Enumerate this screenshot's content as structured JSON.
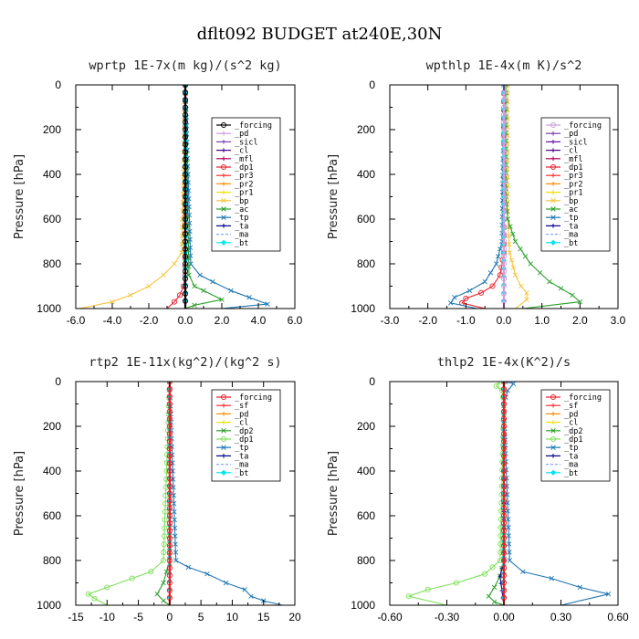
{
  "figure_title": "dflt092  BUDGET at240E,30N",
  "chart_data": [
    {
      "id": "wprtp",
      "type": "line",
      "title": "wprtp   1E-7x(m kg)/(s^2 kg)",
      "ylabel": "Pressure [hPa]",
      "xlim": [
        -6,
        6
      ],
      "ylim": [
        1000,
        0
      ],
      "xticks": [
        -6,
        -4,
        -2,
        0,
        2,
        4,
        6
      ],
      "xtick_labels": [
        "-6.0",
        "-4.0",
        "-2.0",
        "0.0",
        "2.0",
        "4.0",
        "6.0"
      ],
      "yticks": [
        0,
        200,
        400,
        600,
        800,
        1000
      ],
      "ytick_labels": [
        "0",
        "200",
        "400",
        "600",
        "800",
        "1000"
      ],
      "series": [
        {
          "name": "_forcing",
          "color": "#000000",
          "marker": "o",
          "x": [
            0,
            0,
            0,
            0,
            0,
            0,
            0,
            0,
            0,
            0,
            0
          ],
          "y": [
            0,
            100,
            200,
            300,
            400,
            500,
            600,
            700,
            800,
            900,
            1000
          ]
        },
        {
          "name": "_pd",
          "color": "#c9a0dc",
          "marker": "+",
          "x": [
            0,
            0,
            0
          ],
          "y": [
            0,
            500,
            1000
          ]
        },
        {
          "name": "_sicl",
          "color": "#7b3fb0",
          "marker": "+",
          "x": [
            0,
            0,
            0
          ],
          "y": [
            0,
            500,
            1000
          ]
        },
        {
          "name": "_cl",
          "color": "#4b0082",
          "marker": "+",
          "x": [
            0,
            0,
            0
          ],
          "y": [
            0,
            500,
            1000
          ]
        },
        {
          "name": "_mfl",
          "color": "#b0005a",
          "marker": "+",
          "x": [
            0,
            0,
            0
          ],
          "y": [
            0,
            500,
            1000
          ]
        },
        {
          "name": "_dp1",
          "color": "#e8202a",
          "marker": "o",
          "x": [
            0,
            0,
            0,
            -0.1,
            -0.3,
            -0.6,
            -1.0
          ],
          "y": [
            0,
            700,
            850,
            900,
            940,
            970,
            1000
          ]
        },
        {
          "name": "_pr3",
          "color": "#ff3030",
          "marker": "+",
          "x": [
            0,
            0,
            0
          ],
          "y": [
            0,
            500,
            1000
          ]
        },
        {
          "name": "_pr2",
          "color": "#ff8c00",
          "marker": "+",
          "x": [
            0,
            0,
            0
          ],
          "y": [
            0,
            500,
            1000
          ]
        },
        {
          "name": "_pr1",
          "color": "#f0e000",
          "marker": "+",
          "x": [
            0,
            0,
            0
          ],
          "y": [
            0,
            500,
            1000
          ]
        },
        {
          "name": "_bp",
          "color": "#f5c542",
          "marker": "x",
          "x": [
            0,
            -0.2,
            -0.6,
            -1.2,
            -2.0,
            -3.0,
            -4.0,
            -5.8
          ],
          "y": [
            0,
            750,
            800,
            850,
            900,
            940,
            970,
            1000
          ]
        },
        {
          "name": "_ac",
          "color": "#2ca02c",
          "marker": "x",
          "x": [
            0,
            0.2,
            0.5,
            1.0,
            2.0,
            0.5,
            0
          ],
          "y": [
            0,
            850,
            900,
            920,
            960,
            985,
            1000
          ]
        },
        {
          "name": "_tp",
          "color": "#1f77b4",
          "marker": "x",
          "x": [
            0,
            0.3,
            0.8,
            1.5,
            2.5,
            3.5,
            4.5,
            2.0
          ],
          "y": [
            0,
            800,
            850,
            880,
            920,
            950,
            980,
            1000
          ]
        },
        {
          "name": "_ta",
          "color": "#00008b",
          "marker": "+",
          "x": [
            0,
            0,
            0
          ],
          "y": [
            0,
            500,
            1000
          ]
        },
        {
          "name": "_ma",
          "color": "#87a8ff",
          "marker": "-",
          "x": [
            0,
            0,
            0
          ],
          "y": [
            0,
            500,
            1000
          ]
        },
        {
          "name": "_bt",
          "color": "#00e5ee",
          "marker": "D",
          "x": [
            0,
            0,
            0
          ],
          "y": [
            0,
            500,
            1000
          ]
        }
      ]
    },
    {
      "id": "wpthlp",
      "type": "line",
      "title": "wpthlp   1E-4x(m K)/s^2",
      "ylabel": "Pressure [hPa]",
      "xlim": [
        -3,
        3
      ],
      "ylim": [
        1000,
        0
      ],
      "xticks": [
        -3,
        -2,
        -1,
        0,
        1,
        2,
        3
      ],
      "xtick_labels": [
        "-3.0",
        "-2.0",
        "-1.0",
        "0.0",
        "1.0",
        "2.0",
        "3.0"
      ],
      "yticks": [
        0,
        200,
        400,
        600,
        800,
        1000
      ],
      "ytick_labels": [
        "0",
        "200",
        "400",
        "600",
        "800",
        "1000"
      ],
      "series": [
        {
          "name": "_forcing",
          "color": "#c9a0dc",
          "marker": "o",
          "x": [
            0,
            0,
            0,
            0,
            0,
            0,
            0,
            0,
            0,
            0,
            0
          ],
          "y": [
            0,
            100,
            200,
            300,
            400,
            500,
            600,
            700,
            800,
            900,
            1000
          ]
        },
        {
          "name": "_pd",
          "color": "#7b3fb0",
          "marker": "+",
          "x": [
            0,
            0,
            0
          ],
          "y": [
            0,
            500,
            1000
          ]
        },
        {
          "name": "_sicl",
          "color": "#6a0dad",
          "marker": "+",
          "x": [
            0,
            0,
            0
          ],
          "y": [
            0,
            500,
            1000
          ]
        },
        {
          "name": "_cl",
          "color": "#4b0082",
          "marker": "+",
          "x": [
            0,
            0,
            0
          ],
          "y": [
            0,
            500,
            1000
          ]
        },
        {
          "name": "_mfl",
          "color": "#b0005a",
          "marker": "+",
          "x": [
            0,
            0,
            0
          ],
          "y": [
            0,
            500,
            1000
          ]
        },
        {
          "name": "_dp1",
          "color": "#e8202a",
          "marker": "o",
          "x": [
            0,
            0,
            -0.1,
            -0.3,
            -0.6,
            -1.0,
            -1.1,
            -0.5
          ],
          "y": [
            0,
            750,
            850,
            900,
            930,
            955,
            975,
            1000
          ]
        },
        {
          "name": "_pr3",
          "color": "#ff3030",
          "marker": "+",
          "x": [
            0,
            0,
            0
          ],
          "y": [
            0,
            500,
            1000
          ]
        },
        {
          "name": "_pr2",
          "color": "#ff8c00",
          "marker": "+",
          "x": [
            0,
            0,
            0
          ],
          "y": [
            0,
            500,
            1000
          ]
        },
        {
          "name": "_pr1",
          "color": "#f0e000",
          "marker": "+",
          "x": [
            0,
            0,
            0
          ],
          "y": [
            0,
            500,
            1000
          ]
        },
        {
          "name": "_bp",
          "color": "#f5c542",
          "marker": "x",
          "x": [
            0.1,
            0.1,
            0.15,
            0.3,
            0.45,
            0.6,
            0.6,
            0.3
          ],
          "y": [
            0,
            600,
            750,
            850,
            900,
            930,
            960,
            1000
          ]
        },
        {
          "name": "_ac",
          "color": "#2ca02c",
          "marker": "x",
          "x": [
            0.05,
            0.05,
            0.1,
            0.3,
            0.7,
            1.2,
            1.8,
            2.0,
            0.5
          ],
          "y": [
            0,
            500,
            600,
            700,
            800,
            880,
            940,
            970,
            1000
          ]
        },
        {
          "name": "_tp",
          "color": "#1f77b4",
          "marker": "x",
          "x": [
            0,
            -0.05,
            -0.2,
            -0.5,
            -0.9,
            -1.3,
            -1.4,
            -0.7
          ],
          "y": [
            0,
            700,
            800,
            880,
            920,
            950,
            975,
            1000
          ]
        },
        {
          "name": "_ta",
          "color": "#00008b",
          "marker": "+",
          "x": [
            0,
            0,
            0
          ],
          "y": [
            0,
            500,
            1000
          ]
        },
        {
          "name": "_ma",
          "color": "#87a8ff",
          "marker": "-",
          "x": [
            0,
            0,
            0
          ],
          "y": [
            0,
            500,
            1000
          ]
        },
        {
          "name": "_bt",
          "color": "#00e5ee",
          "marker": "D",
          "x": [
            0,
            0,
            0
          ],
          "y": [
            0,
            500,
            1000
          ]
        }
      ]
    },
    {
      "id": "rtp2",
      "type": "line",
      "title": "rtp2   1E-11x(kg^2)/(kg^2 s)",
      "ylabel": "Pressure [hPa]",
      "xlim": [
        -15,
        20
      ],
      "ylim": [
        1000,
        0
      ],
      "xticks": [
        -15,
        -10,
        -5,
        0,
        5,
        10,
        15,
        20
      ],
      "xtick_labels": [
        "-15",
        "-10",
        "-5",
        "0",
        "5",
        "10",
        "15",
        "20"
      ],
      "yticks": [
        0,
        200,
        400,
        600,
        800,
        1000
      ],
      "ytick_labels": [
        "0",
        "200",
        "400",
        "600",
        "800",
        "1000"
      ],
      "series": [
        {
          "name": "_forcing",
          "color": "#e8202a",
          "marker": "o",
          "x": [
            0,
            0,
            0,
            0,
            0,
            0,
            0,
            0,
            0,
            0,
            0
          ],
          "y": [
            0,
            100,
            200,
            300,
            400,
            500,
            600,
            700,
            800,
            900,
            1000
          ]
        },
        {
          "name": "_sf",
          "color": "#ff3030",
          "marker": "+",
          "x": [
            0,
            0,
            0
          ],
          "y": [
            0,
            500,
            1000
          ]
        },
        {
          "name": "_pd",
          "color": "#ff8c00",
          "marker": "+",
          "x": [
            0,
            0,
            0
          ],
          "y": [
            0,
            500,
            1000
          ]
        },
        {
          "name": "_cl",
          "color": "#f0e000",
          "marker": "+",
          "x": [
            0,
            0,
            0
          ],
          "y": [
            0,
            500,
            1000
          ]
        },
        {
          "name": "_dp2",
          "color": "#2ca02c",
          "marker": "x",
          "x": [
            0,
            0,
            -0.5,
            -1.0,
            -2.0,
            -1.0,
            0
          ],
          "y": [
            0,
            800,
            850,
            900,
            950,
            980,
            1000
          ]
        },
        {
          "name": "_dp1",
          "color": "#7fe05a",
          "marker": "o",
          "x": [
            0,
            -1.0,
            -3.0,
            -6.0,
            -10.0,
            -13.0,
            -12.0,
            -10.0
          ],
          "y": [
            0,
            800,
            850,
            880,
            920,
            950,
            970,
            1000
          ]
        },
        {
          "name": "_tp",
          "color": "#1f77b4",
          "marker": "x",
          "x": [
            0,
            1.0,
            3.0,
            6.0,
            9.0,
            12.0,
            13.0,
            15.0,
            18.0
          ],
          "y": [
            0,
            800,
            830,
            860,
            900,
            930,
            960,
            980,
            1000
          ]
        },
        {
          "name": "_ta",
          "color": "#00008b",
          "marker": "+",
          "x": [
            0,
            0,
            0
          ],
          "y": [
            0,
            500,
            1000
          ]
        },
        {
          "name": "_ma",
          "color": "#87a8ff",
          "marker": "-",
          "x": [
            0,
            0,
            0
          ],
          "y": [
            0,
            500,
            1000
          ]
        },
        {
          "name": "_bt",
          "color": "#00e5ee",
          "marker": "D",
          "x": [
            0,
            0,
            0
          ],
          "y": [
            0,
            500,
            1000
          ]
        }
      ]
    },
    {
      "id": "thlp2",
      "type": "line",
      "title": "thlp2   1E-4x(K^2)/s",
      "ylabel": "Pressure [hPa]",
      "xlim": [
        -0.6,
        0.6
      ],
      "ylim": [
        1000,
        0
      ],
      "xticks": [
        -0.6,
        -0.3,
        0,
        0.3,
        0.6
      ],
      "xtick_labels": [
        "-0.60",
        "-0.30",
        "0.00",
        "0.30",
        "0.60"
      ],
      "yticks": [
        0,
        200,
        400,
        600,
        800,
        1000
      ],
      "ytick_labels": [
        "0",
        "200",
        "400",
        "600",
        "800",
        "1000"
      ],
      "series": [
        {
          "name": "_forcing",
          "color": "#e8202a",
          "marker": "o",
          "x": [
            0,
            0,
            0,
            0,
            0,
            0,
            0,
            0,
            0,
            0,
            0
          ],
          "y": [
            0,
            100,
            200,
            300,
            400,
            500,
            600,
            700,
            800,
            900,
            1000
          ]
        },
        {
          "name": "_sf",
          "color": "#ff3030",
          "marker": "+",
          "x": [
            0,
            0,
            0
          ],
          "y": [
            0,
            500,
            1000
          ]
        },
        {
          "name": "_pd",
          "color": "#ff8c00",
          "marker": "+",
          "x": [
            0,
            0,
            0
          ],
          "y": [
            0,
            500,
            1000
          ]
        },
        {
          "name": "_cl",
          "color": "#f0e000",
          "marker": "+",
          "x": [
            0,
            0,
            0
          ],
          "y": [
            0,
            500,
            1000
          ]
        },
        {
          "name": "_dp2",
          "color": "#2ca02c",
          "marker": "x",
          "x": [
            0,
            0,
            -0.02,
            -0.05,
            -0.08,
            -0.05,
            0
          ],
          "y": [
            0,
            800,
            870,
            920,
            960,
            985,
            1000
          ]
        },
        {
          "name": "_dp1",
          "color": "#7fe05a",
          "marker": "o",
          "x": [
            -0.02,
            -0.04,
            -0.01,
            0,
            -0.02,
            -0.1,
            -0.25,
            -0.4,
            -0.5,
            -0.3
          ],
          "y": [
            0,
            20,
            40,
            100,
            800,
            860,
            900,
            930,
            960,
            1000
          ]
        },
        {
          "name": "_tp",
          "color": "#1f77b4",
          "marker": "x",
          "x": [
            0.01,
            0.05,
            0.02,
            0,
            0.03,
            0.1,
            0.25,
            0.4,
            0.55,
            0.3
          ],
          "y": [
            0,
            10,
            40,
            100,
            800,
            850,
            880,
            920,
            950,
            1000
          ]
        },
        {
          "name": "_ta",
          "color": "#00008b",
          "marker": "+",
          "x": [
            0,
            0,
            -0.02,
            0
          ],
          "y": [
            0,
            800,
            870,
            1000
          ]
        },
        {
          "name": "_ma",
          "color": "#87a8ff",
          "marker": "-",
          "x": [
            0,
            0,
            0
          ],
          "y": [
            0,
            500,
            1000
          ]
        },
        {
          "name": "_bt",
          "color": "#00e5ee",
          "marker": "D",
          "x": [
            0,
            0,
            0
          ],
          "y": [
            0,
            500,
            1000
          ]
        }
      ]
    }
  ]
}
